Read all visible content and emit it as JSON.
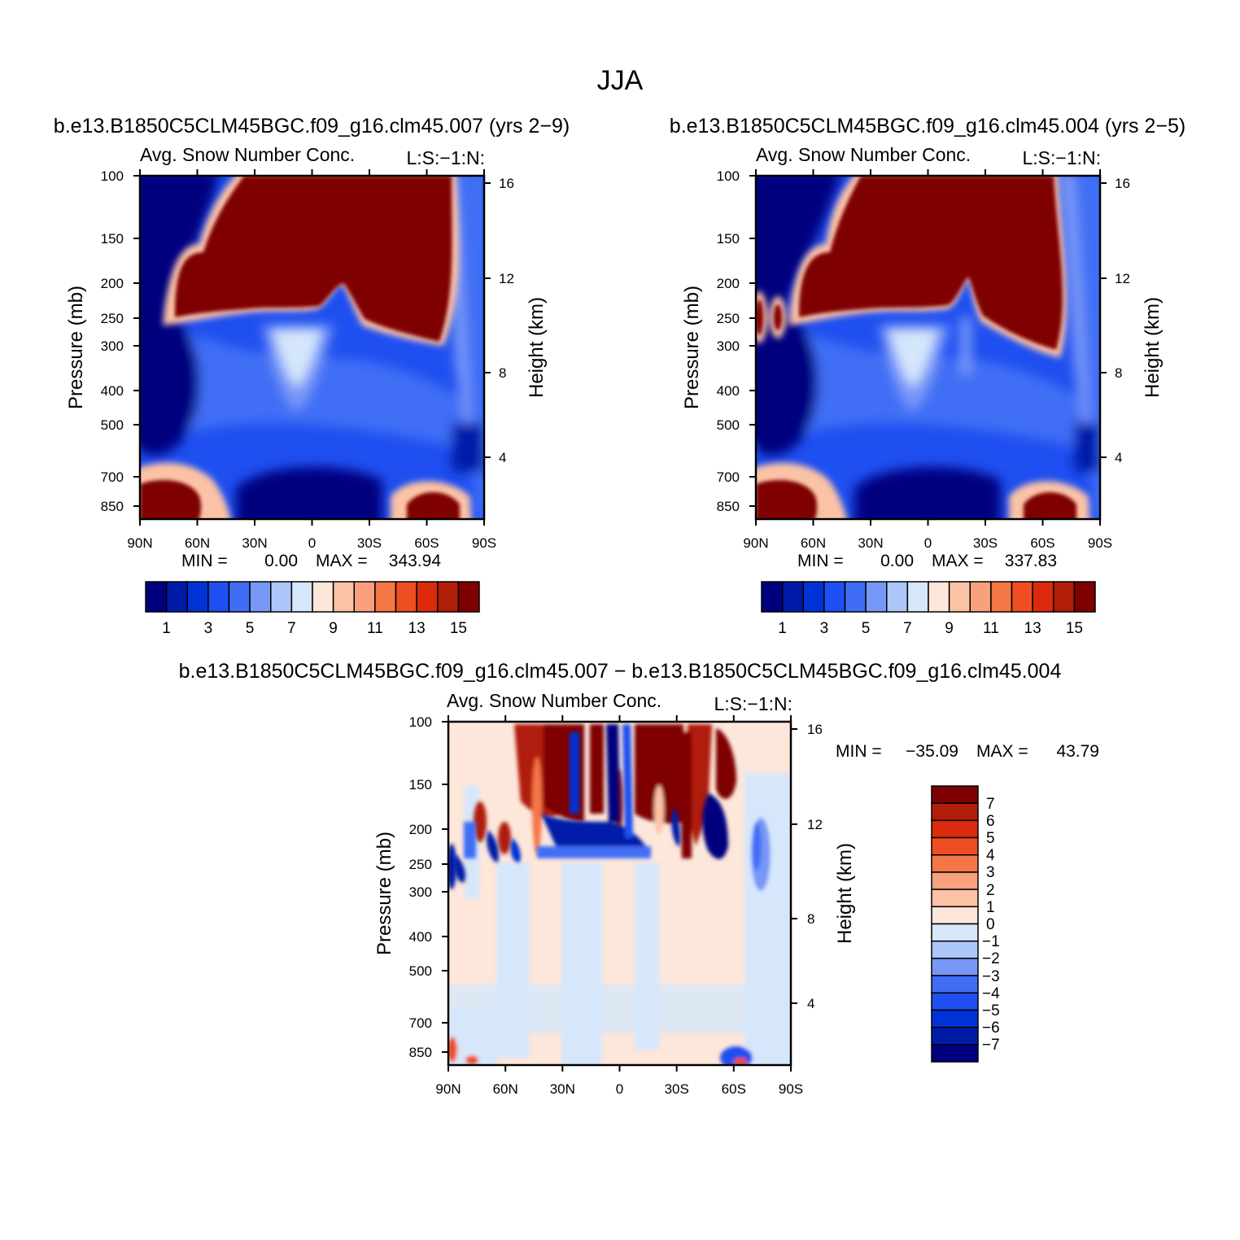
{
  "figure": {
    "title": "JJA"
  },
  "panels": [
    {
      "case_title": "b.e13.B1850C5CLM45BGC.f09_g16.clm45.007 (yrs 2−9)",
      "variable_label": "Avg. Snow Number Conc.",
      "level_label": "L:S:−1:N:",
      "ylabel_left": "Pressure (mb)",
      "ylabel_right": "Height (km)",
      "pressure_ticks": [
        "100",
        "150",
        "200",
        "250",
        "300",
        "400",
        "500",
        "700",
        "850"
      ],
      "height_ticks": [
        "16",
        "12",
        "8",
        "4"
      ],
      "lat_ticks": [
        "90N",
        "60N",
        "30N",
        "0",
        "30S",
        "60S",
        "90S"
      ],
      "min_label": "MIN =",
      "min_value": "0.00",
      "max_label": "MAX =",
      "max_value": "343.94",
      "colorbar_labels": [
        "1",
        "3",
        "5",
        "7",
        "9",
        "11",
        "13",
        "15"
      ]
    },
    {
      "case_title": "b.e13.B1850C5CLM45BGC.f09_g16.clm45.004 (yrs 2−5)",
      "variable_label": "Avg. Snow Number Conc.",
      "level_label": "L:S:−1:N:",
      "ylabel_left": "Pressure (mb)",
      "ylabel_right": "Height (km)",
      "pressure_ticks": [
        "100",
        "150",
        "200",
        "250",
        "300",
        "400",
        "500",
        "700",
        "850"
      ],
      "height_ticks": [
        "16",
        "12",
        "8",
        "4"
      ],
      "lat_ticks": [
        "90N",
        "60N",
        "30N",
        "0",
        "30S",
        "60S",
        "90S"
      ],
      "min_label": "MIN =",
      "min_value": "0.00",
      "max_label": "MAX =",
      "max_value": "337.83",
      "colorbar_labels": [
        "1",
        "3",
        "5",
        "7",
        "9",
        "11",
        "13",
        "15"
      ]
    },
    {
      "case_title": "b.e13.B1850C5CLM45BGC.f09_g16.clm45.007 − b.e13.B1850C5CLM45BGC.f09_g16.clm45.004",
      "variable_label": "Avg. Snow Number Conc.",
      "level_label": "L:S:−1:N:",
      "ylabel_left": "Pressure (mb)",
      "ylabel_right": "Height (km)",
      "pressure_ticks": [
        "100",
        "150",
        "200",
        "250",
        "300",
        "400",
        "500",
        "700",
        "850"
      ],
      "height_ticks": [
        "16",
        "12",
        "8",
        "4"
      ],
      "lat_ticks": [
        "90N",
        "60N",
        "30N",
        "0",
        "30S",
        "60S",
        "90S"
      ],
      "min_label": "MIN =",
      "min_value": "−35.09",
      "max_label": "MAX =",
      "max_value": "43.79",
      "colorbar_labels": [
        "7",
        "6",
        "5",
        "4",
        "3",
        "2",
        "1",
        "0",
        "−1",
        "−2",
        "−3",
        "−4",
        "−5",
        "−6",
        "−7"
      ]
    }
  ],
  "colors": {
    "abs_scale": [
      "#00007f",
      "#001aa8",
      "#0033d6",
      "#1f4ff0",
      "#3f6ef5",
      "#7898f7",
      "#adc6f9",
      "#d6e7fb",
      "#fde6da",
      "#fcc2a6",
      "#f9a07c",
      "#f57746",
      "#ef4d22",
      "#db2a0c",
      "#b01e09",
      "#7f0000"
    ],
    "diff_scale": [
      "#7f0000",
      "#b01e09",
      "#db2a0c",
      "#ef4d22",
      "#f57746",
      "#f9a07c",
      "#fcc2a6",
      "#fde6da",
      "#d6e7fb",
      "#adc6f9",
      "#7898f7",
      "#3f6ef5",
      "#1f4ff0",
      "#0033d6",
      "#001aa8",
      "#00007f"
    ]
  },
  "chart_data": [
    {
      "type": "heatmap",
      "title": "b.e13.B1850C5CLM45BGC.f09_g16.clm45.007 (yrs 2−9)",
      "subtitle": "Avg. Snow Number Conc.",
      "xlabel": "",
      "ylabel": "Pressure (mb)",
      "y2label": "Height (km)",
      "x_range": [
        "90N",
        "90S"
      ],
      "y_range_mb": [
        850,
        100
      ],
      "y_scale": "log",
      "levels": [
        1,
        2,
        3,
        4,
        5,
        6,
        7,
        8,
        9,
        10,
        11,
        12,
        13,
        14,
        15
      ],
      "min": 0.0,
      "max": 343.94
    },
    {
      "type": "heatmap",
      "title": "b.e13.B1850C5CLM45BGC.f09_g16.clm45.004 (yrs 2−5)",
      "subtitle": "Avg. Snow Number Conc.",
      "xlabel": "",
      "ylabel": "Pressure (mb)",
      "y2label": "Height (km)",
      "x_range": [
        "90N",
        "90S"
      ],
      "y_range_mb": [
        850,
        100
      ],
      "y_scale": "log",
      "levels": [
        1,
        2,
        3,
        4,
        5,
        6,
        7,
        8,
        9,
        10,
        11,
        12,
        13,
        14,
        15
      ],
      "min": 0.0,
      "max": 337.83
    },
    {
      "type": "heatmap",
      "title": "b.e13.B1850C5CLM45BGC.f09_g16.clm45.007 − b.e13.B1850C5CLM45BGC.f09_g16.clm45.004",
      "subtitle": "Avg. Snow Number Conc.",
      "xlabel": "",
      "ylabel": "Pressure (mb)",
      "y2label": "Height (km)",
      "x_range": [
        "90N",
        "90S"
      ],
      "y_range_mb": [
        850,
        100
      ],
      "y_scale": "log",
      "levels": [
        -7,
        -6,
        -5,
        -4,
        -3,
        -2,
        -1,
        0,
        1,
        2,
        3,
        4,
        5,
        6,
        7
      ],
      "min": -35.09,
      "max": 43.79
    }
  ]
}
